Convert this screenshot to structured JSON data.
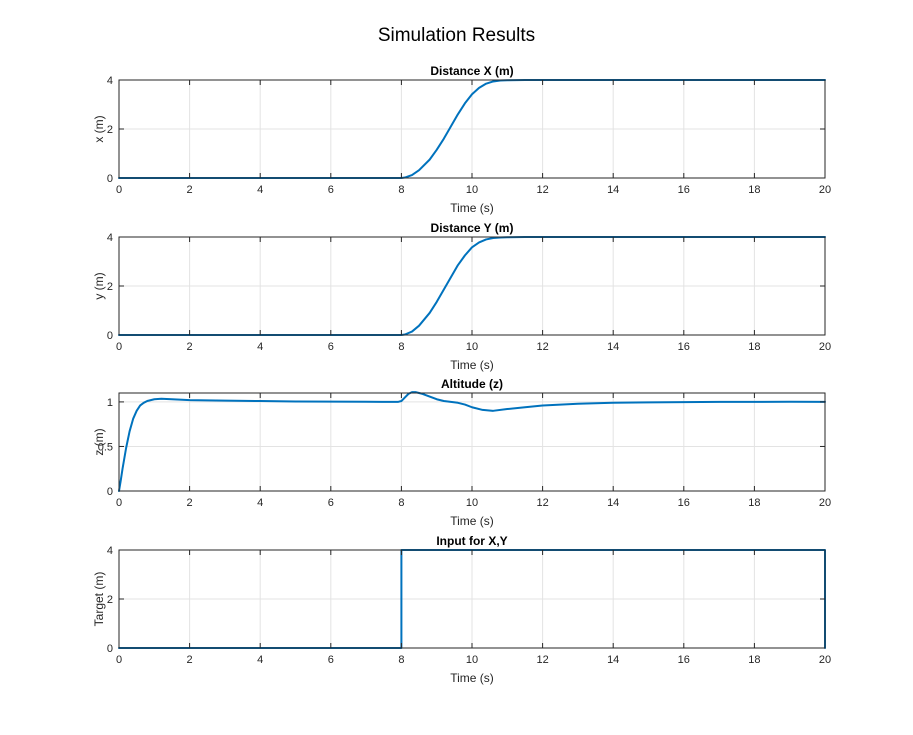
{
  "figure": {
    "title": "Simulation Results",
    "line_color": "#0072bd",
    "grid_color": "#e3e3e3"
  },
  "chart_data": [
    {
      "type": "line",
      "title": "Distance X (m)",
      "xlabel": "Time (s)",
      "ylabel": "x (m)",
      "xlim": [
        0,
        20
      ],
      "ylim": [
        0,
        4
      ],
      "xticks": [
        "0",
        "2",
        "4",
        "6",
        "8",
        "10",
        "12",
        "14",
        "16",
        "18",
        "20"
      ],
      "yticks": [
        "0",
        "2",
        "4"
      ],
      "grid": true,
      "series": [
        {
          "x": [
            0,
            8,
            8.1,
            8.3,
            8.5,
            8.8,
            9.0,
            9.2,
            9.4,
            9.6,
            9.8,
            10.0,
            10.2,
            10.4,
            10.6,
            10.8,
            11.0,
            11.5,
            12,
            20
          ],
          "y": [
            0,
            0,
            0.02,
            0.12,
            0.32,
            0.75,
            1.15,
            1.6,
            2.1,
            2.6,
            3.05,
            3.42,
            3.68,
            3.85,
            3.94,
            3.98,
            3.99,
            4.0,
            4.0,
            4.0
          ]
        }
      ]
    },
    {
      "type": "line",
      "title": "Distance Y (m)",
      "xlabel": "Time (s)",
      "ylabel": "y (m)",
      "xlim": [
        0,
        20
      ],
      "ylim": [
        0,
        4
      ],
      "xticks": [
        "0",
        "2",
        "4",
        "6",
        "8",
        "10",
        "12",
        "14",
        "16",
        "18",
        "20"
      ],
      "yticks": [
        "0",
        "2",
        "4"
      ],
      "grid": true,
      "series": [
        {
          "x": [
            0,
            8,
            8.1,
            8.3,
            8.5,
            8.8,
            9.0,
            9.2,
            9.4,
            9.6,
            9.8,
            10.0,
            10.2,
            10.4,
            10.6,
            10.8,
            11.0,
            11.5,
            12,
            20
          ],
          "y": [
            0,
            0,
            0.02,
            0.14,
            0.38,
            0.9,
            1.35,
            1.85,
            2.35,
            2.85,
            3.25,
            3.58,
            3.78,
            3.9,
            3.96,
            3.98,
            3.99,
            4.0,
            4.0,
            4.0
          ]
        }
      ]
    },
    {
      "type": "line",
      "title": "Altitude (z)",
      "xlabel": "Time (s)",
      "ylabel": "z (m)",
      "xlim": [
        0,
        20
      ],
      "ylim": [
        0,
        1.1
      ],
      "xticks": [
        "0",
        "2",
        "4",
        "6",
        "8",
        "10",
        "12",
        "14",
        "16",
        "18",
        "20"
      ],
      "yticks": [
        "0",
        "0.5",
        "1"
      ],
      "grid": true,
      "series": [
        {
          "x": [
            0,
            0.05,
            0.1,
            0.2,
            0.3,
            0.4,
            0.5,
            0.6,
            0.7,
            0.8,
            1.0,
            1.2,
            1.5,
            2,
            3,
            4,
            5,
            6,
            7,
            7.9,
            8.0,
            8.1,
            8.2,
            8.3,
            8.4,
            8.6,
            8.8,
            9.0,
            9.2,
            9.4,
            9.6,
            9.8,
            10.0,
            10.3,
            10.6,
            11.0,
            11.5,
            12,
            13,
            14,
            15,
            16,
            17,
            18,
            19,
            20
          ],
          "y": [
            0,
            0.12,
            0.25,
            0.48,
            0.67,
            0.81,
            0.9,
            0.96,
            0.99,
            1.01,
            1.03,
            1.035,
            1.03,
            1.02,
            1.015,
            1.01,
            1.005,
            1.003,
            1.002,
            1.0,
            1.01,
            1.05,
            1.09,
            1.11,
            1.11,
            1.09,
            1.06,
            1.03,
            1.01,
            1.0,
            0.99,
            0.97,
            0.94,
            0.91,
            0.9,
            0.92,
            0.94,
            0.96,
            0.98,
            0.99,
            0.995,
            0.998,
            1.0,
            1.0,
            1.002,
            1.0
          ]
        }
      ]
    },
    {
      "type": "line",
      "title": "Input for X,Y",
      "xlabel": "Time (s)",
      "ylabel": "Target (m)",
      "xlim": [
        0,
        20
      ],
      "ylim": [
        0,
        4
      ],
      "xticks": [
        "0",
        "2",
        "4",
        "6",
        "8",
        "10",
        "12",
        "14",
        "16",
        "18",
        "20"
      ],
      "yticks": [
        "0",
        "2",
        "4"
      ],
      "grid": true,
      "series": [
        {
          "x": [
            0,
            8,
            8,
            20,
            20
          ],
          "y": [
            0,
            0,
            4,
            4,
            0
          ]
        }
      ]
    }
  ]
}
